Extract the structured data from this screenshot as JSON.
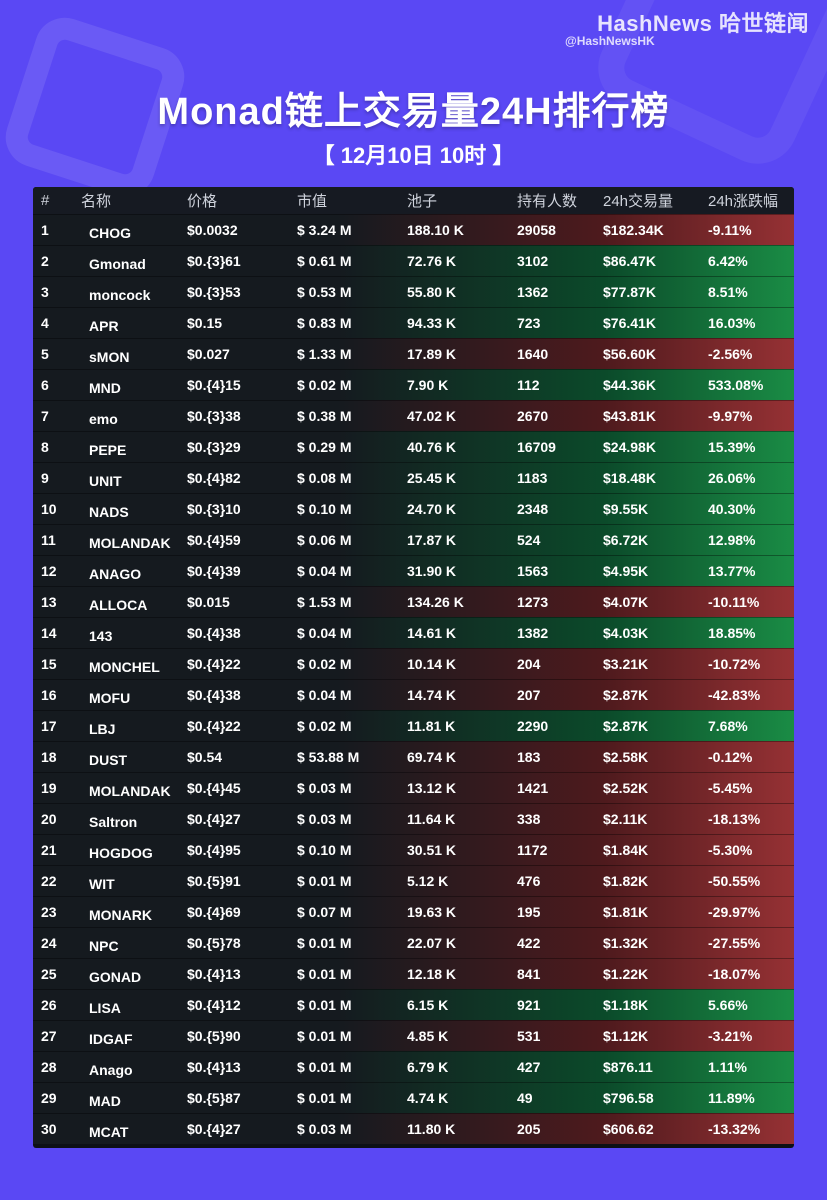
{
  "brand": {
    "name": "HashNews 哈世链闻",
    "handle": "@HashNewsHK"
  },
  "title": "Monad链上交易量24H排行榜",
  "subtitle": "【 12月10日  10时 】",
  "table": {
    "headers": [
      "#",
      "名称",
      "价格",
      "市值",
      "池子",
      "持有人数",
      "24h交易量",
      "24h涨跌幅"
    ],
    "rows": [
      {
        "rank": "1",
        "name": "CHOG",
        "price": "$0.0032",
        "mcap": "$ 3.24 M",
        "pool": "188.10 K",
        "holders": "29058",
        "volume": "$182.34K",
        "change": "-9.11%",
        "dir": "down"
      },
      {
        "rank": "2",
        "name": "Gmonad",
        "price": "$0.{3}61",
        "mcap": "$ 0.61 M",
        "pool": "72.76 K",
        "holders": "3102",
        "volume": "$86.47K",
        "change": "6.42%",
        "dir": "up"
      },
      {
        "rank": "3",
        "name": "moncock",
        "price": "$0.{3}53",
        "mcap": "$ 0.53 M",
        "pool": "55.80 K",
        "holders": "1362",
        "volume": "$77.87K",
        "change": "8.51%",
        "dir": "up"
      },
      {
        "rank": "4",
        "name": "APR",
        "price": "$0.15",
        "mcap": "$ 0.83 M",
        "pool": "94.33 K",
        "holders": "723",
        "volume": "$76.41K",
        "change": "16.03%",
        "dir": "up"
      },
      {
        "rank": "5",
        "name": "sMON",
        "price": "$0.027",
        "mcap": "$ 1.33 M",
        "pool": "17.89 K",
        "holders": "1640",
        "volume": "$56.60K",
        "change": "-2.56%",
        "dir": "down"
      },
      {
        "rank": "6",
        "name": "MND",
        "price": "$0.{4}15",
        "mcap": "$ 0.02 M",
        "pool": "7.90 K",
        "holders": "112",
        "volume": "$44.36K",
        "change": "533.08%",
        "dir": "up"
      },
      {
        "rank": "7",
        "name": "emo",
        "price": "$0.{3}38",
        "mcap": "$ 0.38 M",
        "pool": "47.02 K",
        "holders": "2670",
        "volume": "$43.81K",
        "change": "-9.97%",
        "dir": "down"
      },
      {
        "rank": "8",
        "name": "PEPE",
        "price": "$0.{3}29",
        "mcap": "$ 0.29 M",
        "pool": "40.76 K",
        "holders": "16709",
        "volume": "$24.98K",
        "change": "15.39%",
        "dir": "up"
      },
      {
        "rank": "9",
        "name": "UNIT",
        "price": "$0.{4}82",
        "mcap": "$ 0.08 M",
        "pool": "25.45 K",
        "holders": "1183",
        "volume": "$18.48K",
        "change": "26.06%",
        "dir": "up"
      },
      {
        "rank": "10",
        "name": "NADS",
        "price": "$0.{3}10",
        "mcap": "$ 0.10 M",
        "pool": "24.70 K",
        "holders": "2348",
        "volume": "$9.55K",
        "change": "40.30%",
        "dir": "up"
      },
      {
        "rank": "11",
        "name": "MOLANDAK",
        "price": "$0.{4}59",
        "mcap": "$ 0.06 M",
        "pool": "17.87 K",
        "holders": "524",
        "volume": "$6.72K",
        "change": "12.98%",
        "dir": "up"
      },
      {
        "rank": "12",
        "name": "ANAGO",
        "price": "$0.{4}39",
        "mcap": "$ 0.04 M",
        "pool": "31.90 K",
        "holders": "1563",
        "volume": "$4.95K",
        "change": "13.77%",
        "dir": "up"
      },
      {
        "rank": "13",
        "name": "ALLOCA",
        "price": "$0.015",
        "mcap": "$ 1.53 M",
        "pool": "134.26 K",
        "holders": "1273",
        "volume": "$4.07K",
        "change": "-10.11%",
        "dir": "down"
      },
      {
        "rank": "14",
        "name": "143",
        "price": "$0.{4}38",
        "mcap": "$ 0.04 M",
        "pool": "14.61 K",
        "holders": "1382",
        "volume": "$4.03K",
        "change": "18.85%",
        "dir": "up"
      },
      {
        "rank": "15",
        "name": "MONCHEL",
        "price": "$0.{4}22",
        "mcap": "$ 0.02 M",
        "pool": "10.14 K",
        "holders": "204",
        "volume": "$3.21K",
        "change": "-10.72%",
        "dir": "down"
      },
      {
        "rank": "16",
        "name": "MOFU",
        "price": "$0.{4}38",
        "mcap": "$ 0.04 M",
        "pool": "14.74 K",
        "holders": "207",
        "volume": "$2.87K",
        "change": "-42.83%",
        "dir": "down"
      },
      {
        "rank": "17",
        "name": "LBJ",
        "price": "$0.{4}22",
        "mcap": "$ 0.02 M",
        "pool": "11.81 K",
        "holders": "2290",
        "volume": "$2.87K",
        "change": "7.68%",
        "dir": "up"
      },
      {
        "rank": "18",
        "name": "DUST",
        "price": "$0.54",
        "mcap": "$ 53.88 M",
        "pool": "69.74 K",
        "holders": "183",
        "volume": "$2.58K",
        "change": "-0.12%",
        "dir": "down"
      },
      {
        "rank": "19",
        "name": "MOLANDAK",
        "price": "$0.{4}45",
        "mcap": "$ 0.03 M",
        "pool": "13.12 K",
        "holders": "1421",
        "volume": "$2.52K",
        "change": "-5.45%",
        "dir": "down"
      },
      {
        "rank": "20",
        "name": "Saltron",
        "price": "$0.{4}27",
        "mcap": "$ 0.03 M",
        "pool": "11.64 K",
        "holders": "338",
        "volume": "$2.11K",
        "change": "-18.13%",
        "dir": "down"
      },
      {
        "rank": "21",
        "name": "HOGDOG",
        "price": "$0.{4}95",
        "mcap": "$ 0.10 M",
        "pool": "30.51 K",
        "holders": "1172",
        "volume": "$1.84K",
        "change": "-5.30%",
        "dir": "down"
      },
      {
        "rank": "22",
        "name": "WIT",
        "price": "$0.{5}91",
        "mcap": "$ 0.01 M",
        "pool": "5.12 K",
        "holders": "476",
        "volume": "$1.82K",
        "change": "-50.55%",
        "dir": "down"
      },
      {
        "rank": "23",
        "name": "MONARK",
        "price": "$0.{4}69",
        "mcap": "$ 0.07 M",
        "pool": "19.63 K",
        "holders": "195",
        "volume": "$1.81K",
        "change": "-29.97%",
        "dir": "down"
      },
      {
        "rank": "24",
        "name": "NPC",
        "price": "$0.{5}78",
        "mcap": "$ 0.01 M",
        "pool": "22.07 K",
        "holders": "422",
        "volume": "$1.32K",
        "change": "-27.55%",
        "dir": "down"
      },
      {
        "rank": "25",
        "name": "GONAD",
        "price": "$0.{4}13",
        "mcap": "$ 0.01 M",
        "pool": "12.18 K",
        "holders": "841",
        "volume": "$1.22K",
        "change": "-18.07%",
        "dir": "down"
      },
      {
        "rank": "26",
        "name": "LISA",
        "price": "$0.{4}12",
        "mcap": "$ 0.01 M",
        "pool": "6.15 K",
        "holders": "921",
        "volume": "$1.18K",
        "change": "5.66%",
        "dir": "up"
      },
      {
        "rank": "27",
        "name": "IDGAF",
        "price": "$0.{5}90",
        "mcap": "$ 0.01 M",
        "pool": "4.85 K",
        "holders": "531",
        "volume": "$1.12K",
        "change": "-3.21%",
        "dir": "down"
      },
      {
        "rank": "28",
        "name": "Anago",
        "price": "$0.{4}13",
        "mcap": "$ 0.01 M",
        "pool": "6.79 K",
        "holders": "427",
        "volume": "$876.11",
        "change": "1.11%",
        "dir": "up"
      },
      {
        "rank": "29",
        "name": "MAD",
        "price": "$0.{5}87",
        "mcap": "$ 0.01 M",
        "pool": "4.74 K",
        "holders": "49",
        "volume": "$796.58",
        "change": "11.89%",
        "dir": "up"
      },
      {
        "rank": "30",
        "name": "MCAT",
        "price": "$0.{4}27",
        "mcap": "$ 0.03 M",
        "pool": "11.80 K",
        "holders": "205",
        "volume": "$606.62",
        "change": "-13.32%",
        "dir": "down"
      }
    ]
  },
  "colors": {
    "background": "#5a48f4",
    "up": "#1a8c45",
    "down": "#963134",
    "table": "#0d1016"
  }
}
